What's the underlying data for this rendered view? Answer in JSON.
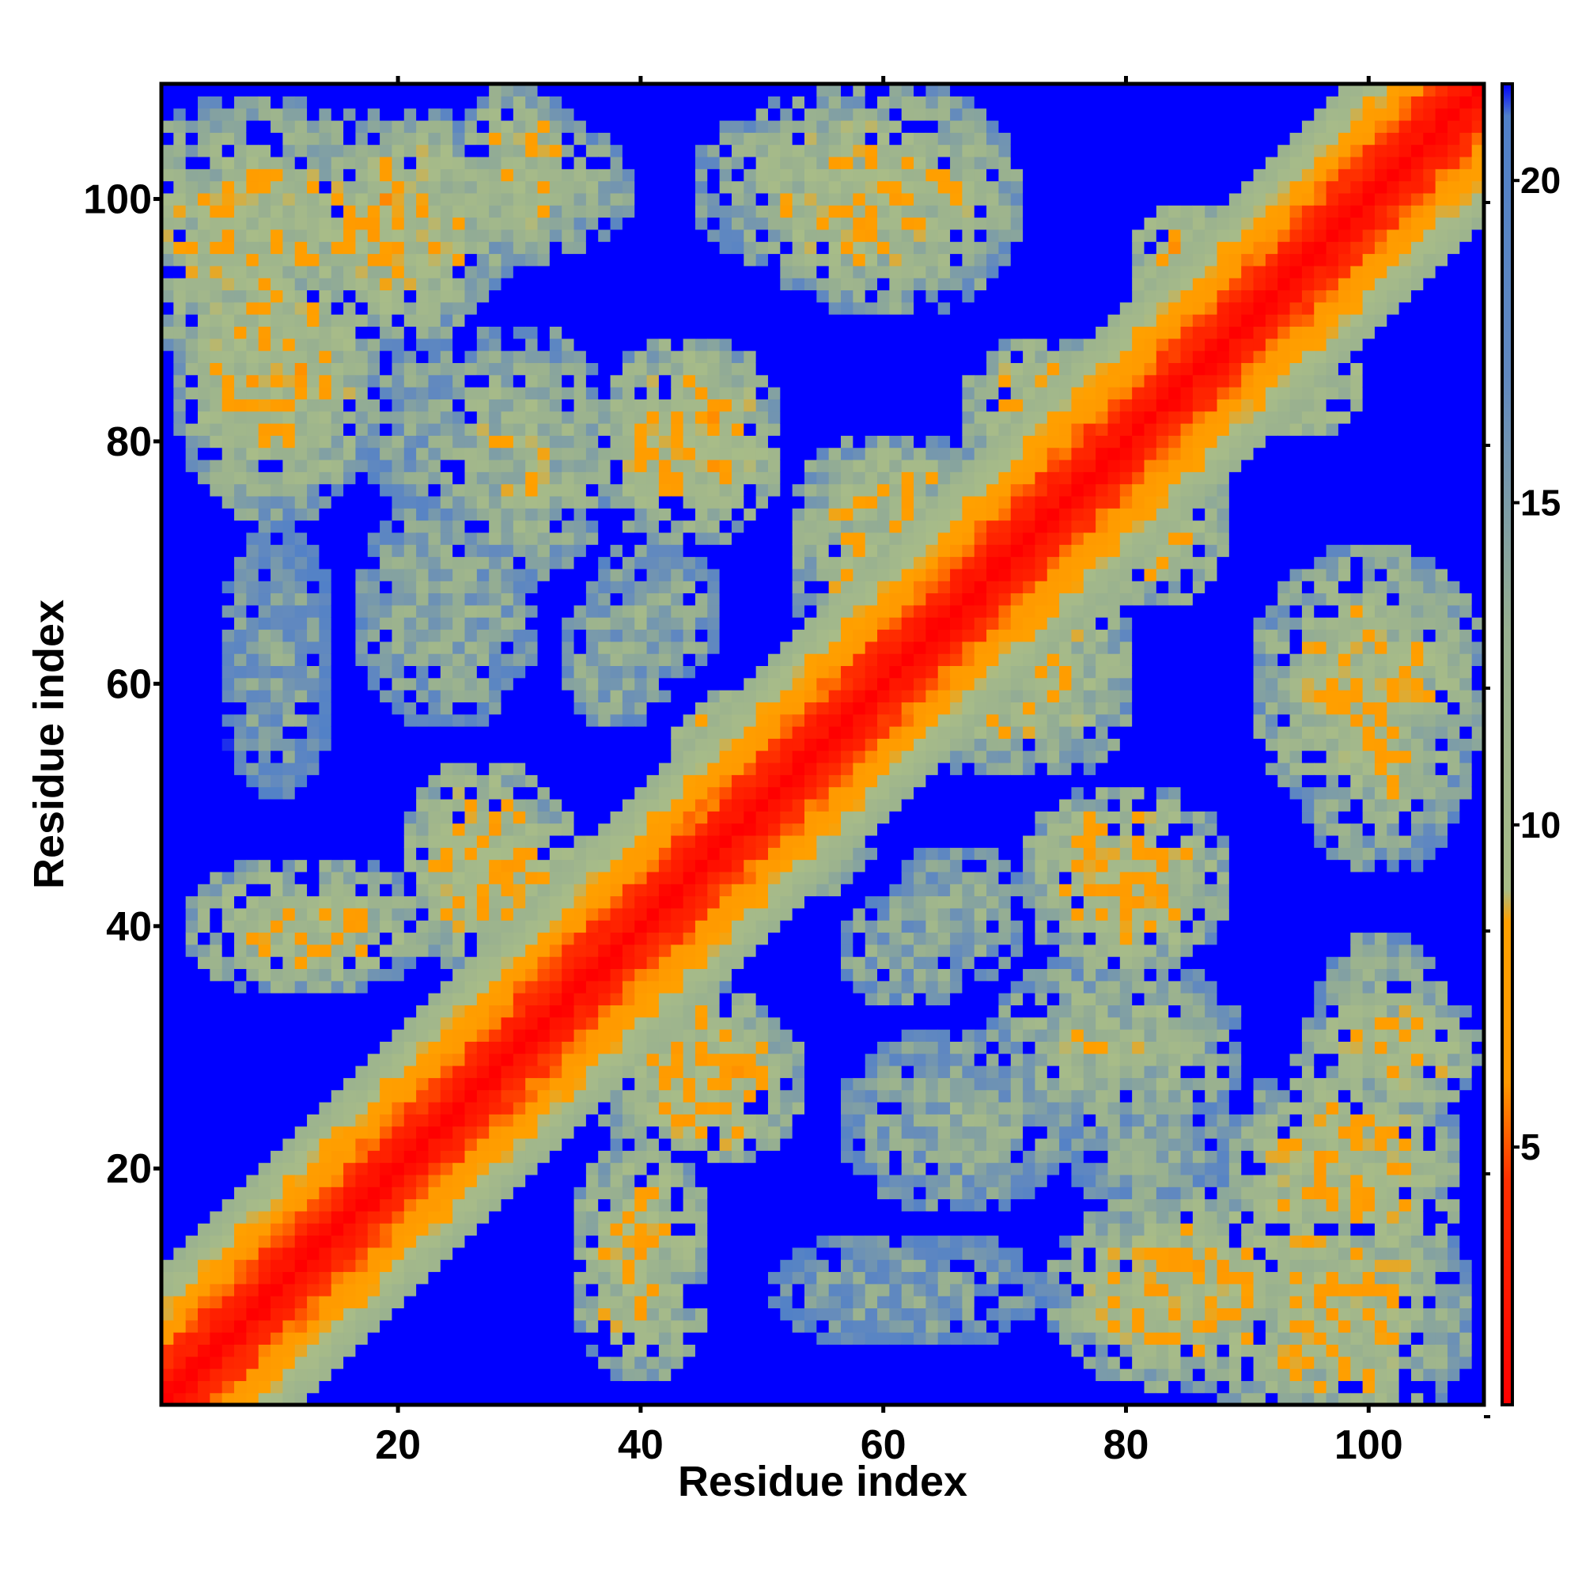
{
  "chart_data": {
    "type": "heatmap",
    "title": "",
    "xlabel": "Residue index",
    "ylabel": "Residue index",
    "n_residues": 109,
    "xlim": [
      1,
      109
    ],
    "ylim": [
      1,
      109
    ],
    "xticks": [
      20,
      40,
      60,
      80,
      100
    ],
    "yticks": [
      20,
      40,
      60,
      80,
      100
    ],
    "colorbar": {
      "range": [
        1,
        21.5
      ],
      "ticks": [
        5,
        10,
        15,
        20
      ],
      "stops": [
        {
          "value": 1,
          "color": "#ff0000"
        },
        {
          "value": 4.5,
          "color": "#ff3000"
        },
        {
          "value": 6,
          "color": "#ff9900"
        },
        {
          "value": 8.5,
          "color": "#ffa000"
        },
        {
          "value": 9,
          "color": "#a8bc88"
        },
        {
          "value": 13,
          "color": "#98b090"
        },
        {
          "value": 17,
          "color": "#6088c0"
        },
        {
          "value": 21,
          "color": "#5080c8"
        },
        {
          "value": 21.5,
          "color": "#0000ff"
        }
      ]
    },
    "values": {
      "description_of_matrix": "symmetric residue-residue distance map; diagonal ~1, near-diagonal band 2-12, beyond cutoff 21.5",
      "background_value": 21.5,
      "diagonal_value": 1,
      "band": {
        "width_residues": 12,
        "min": 1,
        "max": 13
      },
      "contact_regions": [
        {
          "x": 8,
          "y": 97,
          "rx": 11,
          "ry": 12,
          "min": 6,
          "max": 16
        },
        {
          "x": 11,
          "y": 40,
          "rx": 9,
          "ry": 6,
          "min": 6,
          "max": 16
        },
        {
          "x": 28,
          "y": 44,
          "rx": 8,
          "ry": 8,
          "min": 5,
          "max": 15
        },
        {
          "x": 24,
          "y": 66,
          "rx": 8,
          "ry": 10,
          "min": 10,
          "max": 18
        },
        {
          "x": 40,
          "y": 14,
          "rx": 6,
          "ry": 9,
          "min": 6,
          "max": 16
        },
        {
          "x": 45,
          "y": 27,
          "rx": 9,
          "ry": 7,
          "min": 5,
          "max": 15
        },
        {
          "x": 44,
          "y": 80,
          "rx": 7,
          "ry": 9,
          "min": 5,
          "max": 15
        },
        {
          "x": 30,
          "y": 101,
          "rx": 10,
          "ry": 6,
          "min": 8,
          "max": 17
        },
        {
          "x": 57,
          "y": 101,
          "rx": 13,
          "ry": 8,
          "min": 6,
          "max": 17
        },
        {
          "x": 50,
          "y": 54,
          "rx": 8,
          "ry": 6,
          "min": 5,
          "max": 14
        },
        {
          "x": 61,
          "y": 74,
          "rx": 9,
          "ry": 7,
          "min": 7,
          "max": 16
        },
        {
          "x": 70,
          "y": 60,
          "rx": 9,
          "ry": 8,
          "min": 7,
          "max": 16
        },
        {
          "x": 74,
          "y": 82,
          "rx": 8,
          "ry": 7,
          "min": 5,
          "max": 15
        },
        {
          "x": 80,
          "y": 44,
          "rx": 9,
          "ry": 8,
          "min": 5,
          "max": 15
        },
        {
          "x": 79,
          "y": 30,
          "rx": 11,
          "ry": 8,
          "min": 8,
          "max": 17
        },
        {
          "x": 86,
          "y": 10,
          "rx": 13,
          "ry": 9,
          "min": 5,
          "max": 16
        },
        {
          "x": 98,
          "y": 20,
          "rx": 10,
          "ry": 10,
          "min": 5,
          "max": 16
        },
        {
          "x": 100,
          "y": 60,
          "rx": 10,
          "ry": 12,
          "min": 6,
          "max": 16
        },
        {
          "x": 102,
          "y": 30,
          "rx": 8,
          "ry": 6,
          "min": 6,
          "max": 16
        },
        {
          "x": 66,
          "y": 41,
          "rx": 6,
          "ry": 6,
          "min": 10,
          "max": 18
        },
        {
          "x": 38,
          "y": 62,
          "rx": 5,
          "ry": 6,
          "min": 10,
          "max": 18
        },
        {
          "x": 85,
          "y": 86,
          "rx": 6,
          "ry": 5,
          "min": 5,
          "max": 13
        },
        {
          "x": 95,
          "y": 85,
          "rx": 5,
          "ry": 5,
          "min": 6,
          "max": 14
        },
        {
          "x": 10,
          "y": 62,
          "rx": 5,
          "ry": 12,
          "min": 12,
          "max": 19
        },
        {
          "x": 22,
          "y": 82,
          "rx": 6,
          "ry": 8,
          "min": 11,
          "max": 19
        }
      ]
    }
  }
}
